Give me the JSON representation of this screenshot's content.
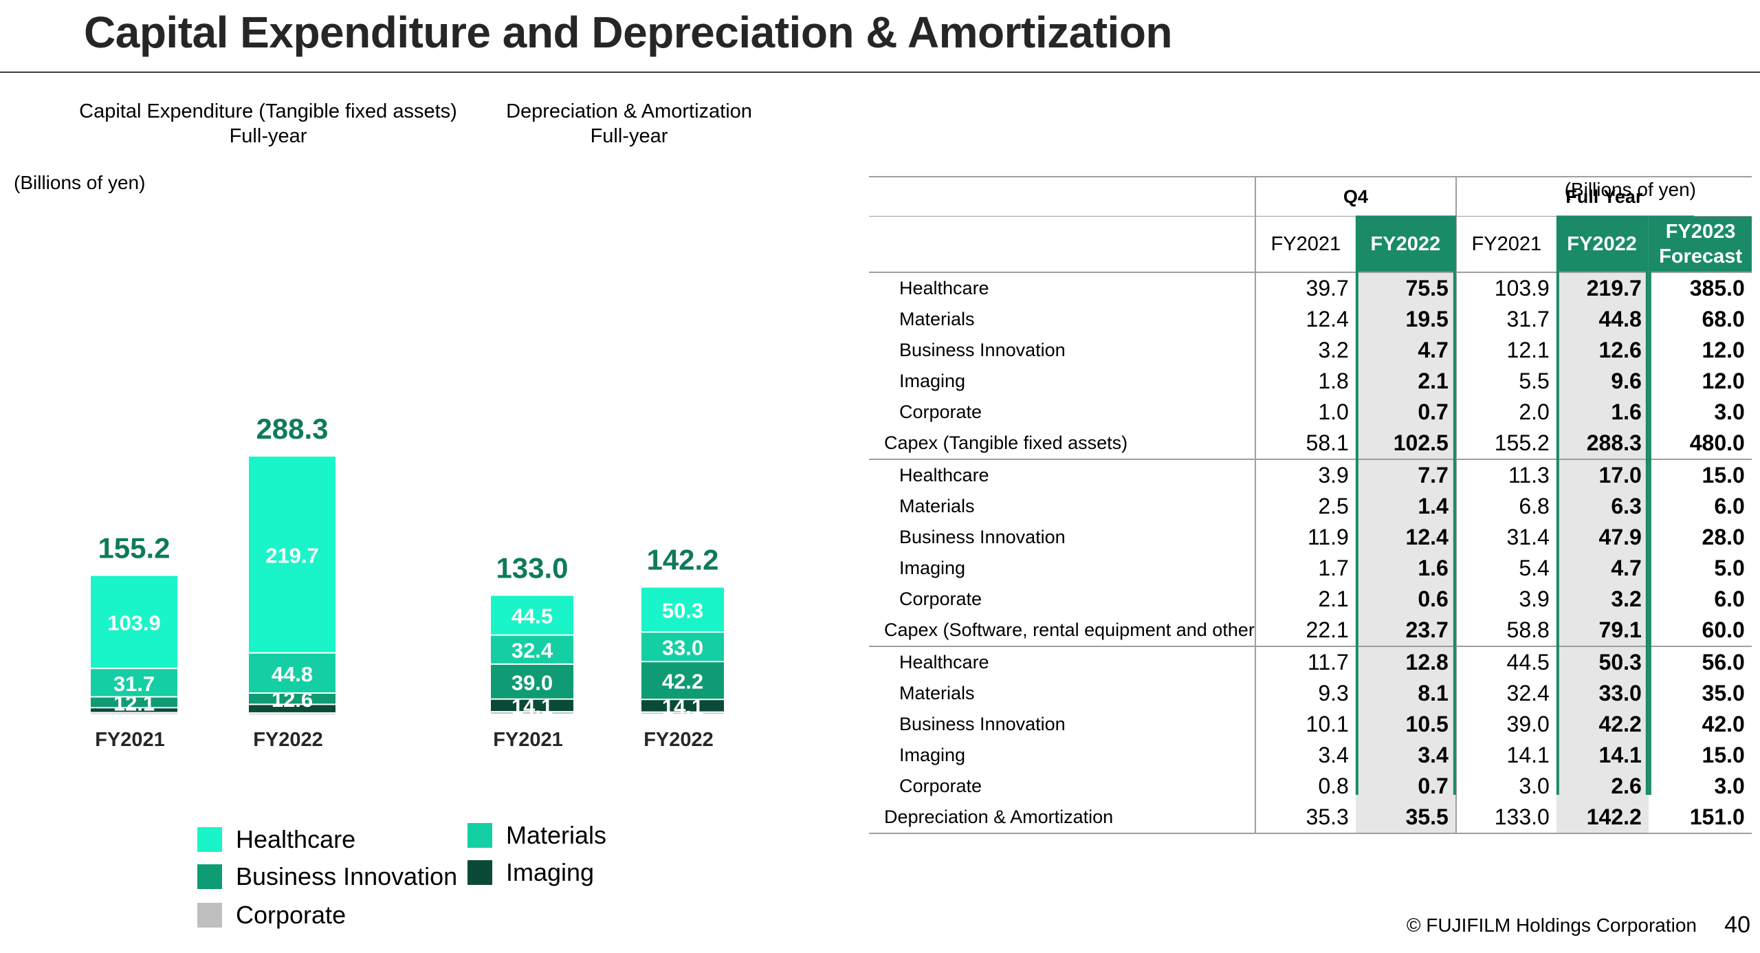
{
  "page": {
    "title": "Capital Expenditure and Depreciation & Amortization",
    "footer": "© FUJIFILM Holdings Corporation",
    "page_number": "40"
  },
  "left": {
    "unit": "(Billions of yen)",
    "capex_title": "Capital Expenditure (Tangible fixed assets)",
    "capex_subtitle": "Full-year",
    "da_title": "Depreciation & Amortization",
    "da_subtitle": "Full-year"
  },
  "legend": [
    {
      "name": "Healthcare",
      "color": "#19f5c8"
    },
    {
      "name": "Materials",
      "color": "#14cfa3"
    },
    {
      "name": "Business Innovation",
      "color": "#0f9b73"
    },
    {
      "name": "Imaging",
      "color": "#0b4a38"
    },
    {
      "name": "Corporate",
      "color": "#bfbfbf"
    }
  ],
  "chart_data": [
    {
      "type": "bar",
      "stacked": true,
      "title": "Capital Expenditure (Tangible fixed assets)",
      "subtitle": "Full-year",
      "unit": "(Billions of yen)",
      "categories": [
        "FY2021",
        "FY2022"
      ],
      "totals": [
        155.2,
        288.3
      ],
      "series": [
        {
          "name": "Corporate",
          "values": [
            2.0,
            1.6
          ],
          "color": "#bfbfbf",
          "labels": [
            null,
            null
          ]
        },
        {
          "name": "Imaging",
          "values": [
            5.5,
            9.6
          ],
          "color": "#0b4a38",
          "labels": [
            null,
            null
          ]
        },
        {
          "name": "Business Innovation",
          "values": [
            12.1,
            12.6
          ],
          "color": "#0f9b73",
          "labels": [
            "12.1",
            "12.6"
          ]
        },
        {
          "name": "Materials",
          "values": [
            31.7,
            44.8
          ],
          "color": "#14cfa3",
          "labels": [
            "31.7",
            "44.8"
          ]
        },
        {
          "name": "Healthcare",
          "values": [
            103.9,
            219.7
          ],
          "color": "#19f5c8",
          "labels": [
            "103.9",
            "219.7"
          ]
        }
      ]
    },
    {
      "type": "bar",
      "stacked": true,
      "title": "Depreciation & Amortization",
      "subtitle": "Full-year",
      "unit": "(Billions of yen)",
      "categories": [
        "FY2021",
        "FY2022"
      ],
      "totals": [
        133.0,
        142.2
      ],
      "series": [
        {
          "name": "Corporate",
          "values": [
            3.0,
            2.6
          ],
          "color": "#bfbfbf",
          "labels": [
            null,
            null
          ]
        },
        {
          "name": "Imaging",
          "values": [
            14.1,
            14.1
          ],
          "color": "#0b4a38",
          "labels": [
            "14.1",
            "14.1"
          ]
        },
        {
          "name": "Business Innovation",
          "values": [
            39.0,
            42.2
          ],
          "color": "#0f9b73",
          "labels": [
            "39.0",
            "42.2"
          ]
        },
        {
          "name": "Materials",
          "values": [
            32.4,
            33.0
          ],
          "color": "#14cfa3",
          "labels": [
            "32.4",
            "33.0"
          ]
        },
        {
          "name": "Healthcare",
          "values": [
            44.5,
            50.3
          ],
          "color": "#19f5c8",
          "labels": [
            "44.5",
            "50.3"
          ]
        }
      ]
    }
  ],
  "table": {
    "unit": "(Billions of yen)",
    "group_headers": [
      "Q4",
      "Full Year"
    ],
    "columns": [
      "FY2021",
      "FY2022",
      "FY2021",
      "FY2022",
      "FY2023\nForecast"
    ],
    "rows": [
      {
        "label": "Healthcare",
        "kind": "sub",
        "values": [
          "39.7",
          "75.5",
          "103.9",
          "219.7",
          "385.0"
        ]
      },
      {
        "label": "Materials",
        "kind": "sub",
        "values": [
          "12.4",
          "19.5",
          "31.7",
          "44.8",
          "68.0"
        ]
      },
      {
        "label": "Business Innovation",
        "kind": "sub",
        "values": [
          "3.2",
          "4.7",
          "12.1",
          "12.6",
          "12.0"
        ]
      },
      {
        "label": "Imaging",
        "kind": "sub",
        "values": [
          "1.8",
          "2.1",
          "5.5",
          "9.6",
          "12.0"
        ]
      },
      {
        "label": "Corporate",
        "kind": "sub",
        "values": [
          "1.0",
          "0.7",
          "2.0",
          "1.6",
          "3.0"
        ]
      },
      {
        "label": "Capex (Tangible fixed assets)",
        "kind": "total",
        "values": [
          "58.1",
          "102.5",
          "155.2",
          "288.3",
          "480.0"
        ]
      },
      {
        "label": "Healthcare",
        "kind": "sub",
        "values": [
          "3.9",
          "7.7",
          "11.3",
          "17.0",
          "15.0"
        ]
      },
      {
        "label": "Materials",
        "kind": "sub",
        "values": [
          "2.5",
          "1.4",
          "6.8",
          "6.3",
          "6.0"
        ]
      },
      {
        "label": "Business Innovation",
        "kind": "sub",
        "values": [
          "11.9",
          "12.4",
          "31.4",
          "47.9",
          "28.0"
        ]
      },
      {
        "label": "Imaging",
        "kind": "sub",
        "values": [
          "1.7",
          "1.6",
          "5.4",
          "4.7",
          "5.0"
        ]
      },
      {
        "label": "Corporate",
        "kind": "sub",
        "values": [
          "2.1",
          "0.6",
          "3.9",
          "3.2",
          "6.0"
        ]
      },
      {
        "label": "Capex (Software, rental equipment and other",
        "kind": "total",
        "values": [
          "22.1",
          "23.7",
          "58.8",
          "79.1",
          "60.0"
        ]
      },
      {
        "label": "Healthcare",
        "kind": "sub",
        "values": [
          "11.7",
          "12.8",
          "44.5",
          "50.3",
          "56.0"
        ]
      },
      {
        "label": "Materials",
        "kind": "sub",
        "values": [
          "9.3",
          "8.1",
          "32.4",
          "33.0",
          "35.0"
        ]
      },
      {
        "label": "Business Innovation",
        "kind": "sub",
        "values": [
          "10.1",
          "10.5",
          "39.0",
          "42.2",
          "42.0"
        ]
      },
      {
        "label": "Imaging",
        "kind": "sub",
        "values": [
          "3.4",
          "3.4",
          "14.1",
          "14.1",
          "15.0"
        ]
      },
      {
        "label": "Corporate",
        "kind": "sub",
        "values": [
          "0.8",
          "0.7",
          "3.0",
          "2.6",
          "3.0"
        ]
      },
      {
        "label": "Depreciation & Amortization",
        "kind": "total",
        "values": [
          "35.3",
          "35.5",
          "133.0",
          "142.2",
          "151.0"
        ]
      }
    ]
  }
}
